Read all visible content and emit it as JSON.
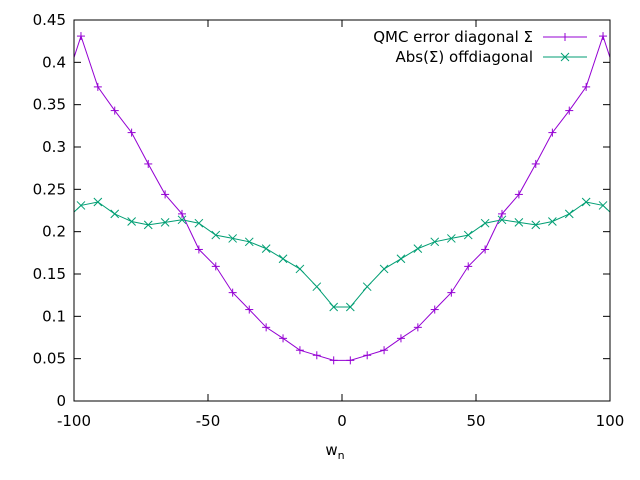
{
  "chart_data": {
    "type": "line",
    "xlabel_main": "w",
    "xlabel_sub": "n",
    "ylabel": "",
    "xlim": [
      -100,
      100
    ],
    "ylim": [
      0,
      0.45
    ],
    "xticks": [
      -100,
      -50,
      0,
      50,
      100
    ],
    "yticks": [
      0,
      0.05,
      0.1,
      0.15,
      0.2,
      0.25,
      0.3,
      0.35,
      0.4,
      0.45
    ],
    "ytick_labels": [
      "0",
      "0.05",
      "0.1",
      "0.15",
      "0.2",
      "0.25",
      "0.3",
      "0.35",
      "0.4",
      "0.45"
    ],
    "xtick_labels": [
      "-100",
      "-50",
      "0",
      "50",
      "100"
    ],
    "legend_position": "top-right",
    "series": [
      {
        "name": "QMC error diagonal Σ",
        "color": "#9400d3",
        "marker": "plus",
        "x": [
          -103.7,
          -97.4,
          -91.1,
          -84.8,
          -78.5,
          -72.3,
          -66.0,
          -59.7,
          -53.4,
          -47.1,
          -40.8,
          -34.6,
          -28.3,
          -22.0,
          -15.7,
          -9.4,
          -3.1,
          3.1,
          9.4,
          15.7,
          22.0,
          28.3,
          34.6,
          40.8,
          47.1,
          53.4,
          59.7,
          66.0,
          72.3,
          78.5,
          84.8,
          91.1,
          97.4,
          103.7
        ],
        "y": [
          0.37,
          0.431,
          0.371,
          0.343,
          0.317,
          0.28,
          0.244,
          0.221,
          0.179,
          0.159,
          0.128,
          0.108,
          0.087,
          0.074,
          0.06,
          0.054,
          0.048,
          0.048,
          0.054,
          0.06,
          0.074,
          0.087,
          0.108,
          0.128,
          0.159,
          0.179,
          0.221,
          0.244,
          0.28,
          0.317,
          0.343,
          0.371,
          0.431,
          0.37
        ]
      },
      {
        "name": "Abs(Σ) offdiagonal",
        "color": "#009e73",
        "marker": "cross",
        "x": [
          -103.7,
          -97.4,
          -91.1,
          -84.8,
          -78.5,
          -72.3,
          -66.0,
          -59.7,
          -53.4,
          -47.1,
          -40.8,
          -34.6,
          -28.3,
          -22.0,
          -15.7,
          -9.4,
          -3.1,
          3.1,
          9.4,
          15.7,
          22.0,
          28.3,
          34.6,
          40.8,
          47.1,
          53.4,
          59.7,
          66.0,
          72.3,
          78.5,
          84.8,
          91.1,
          97.4,
          103.7
        ],
        "y": [
          0.212,
          0.231,
          0.235,
          0.221,
          0.212,
          0.208,
          0.211,
          0.214,
          0.21,
          0.196,
          0.192,
          0.188,
          0.18,
          0.168,
          0.156,
          0.135,
          0.111,
          0.111,
          0.135,
          0.156,
          0.168,
          0.18,
          0.188,
          0.192,
          0.196,
          0.21,
          0.214,
          0.211,
          0.208,
          0.212,
          0.221,
          0.235,
          0.231,
          0.212
        ]
      }
    ]
  }
}
